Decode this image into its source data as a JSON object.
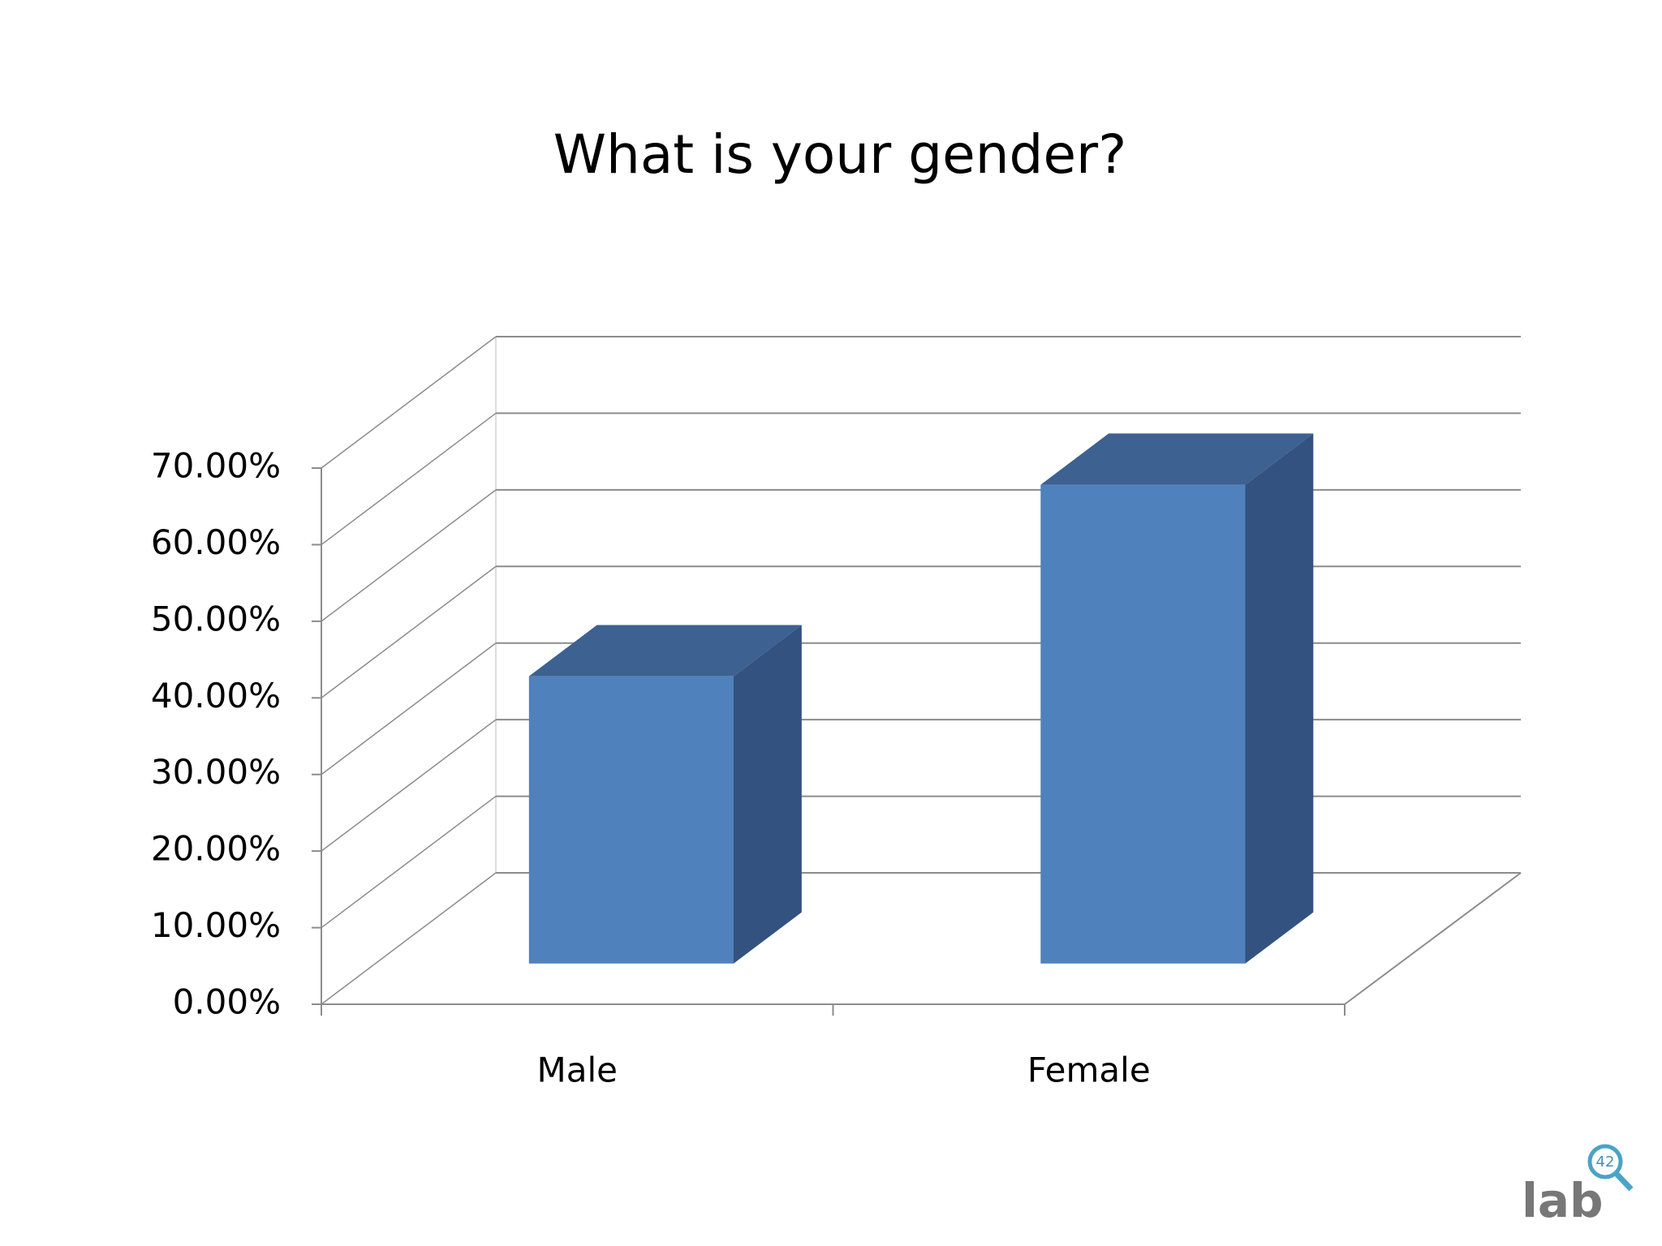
{
  "chart_data": {
    "type": "bar3d",
    "title": "What is your gender?",
    "categories": [
      "Male",
      "Female"
    ],
    "values": [
      37.5,
      62.5
    ],
    "color": "#4f81bd",
    "top_color": "#3d6190",
    "side_color": "#335280",
    "ylim": [
      0,
      70
    ],
    "yticks": [
      {
        "value": 0,
        "label": "0.00%"
      },
      {
        "value": 10,
        "label": "10.00%"
      },
      {
        "value": 20,
        "label": "20.00%"
      },
      {
        "value": 30,
        "label": "30.00%"
      },
      {
        "value": 40,
        "label": "40.00%"
      },
      {
        "value": 50,
        "label": "50.00%"
      },
      {
        "value": 60,
        "label": "60.00%"
      },
      {
        "value": 70,
        "label": "70.00%"
      }
    ],
    "grid": true
  },
  "logo": {
    "text": "lab",
    "badge": "42"
  }
}
